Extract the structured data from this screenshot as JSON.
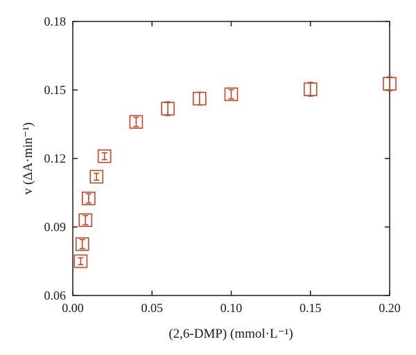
{
  "chart_data": {
    "type": "scatter",
    "xlabel": "(2,6-DMP) (mmol·L⁻¹)",
    "ylabel": "v (ΔA·min⁻¹)",
    "xlim": [
      0.0,
      0.2
    ],
    "ylim": [
      0.06,
      0.18
    ],
    "x_ticks": [
      "0.00",
      "0.05",
      "0.10",
      "0.15",
      "0.20"
    ],
    "y_ticks": [
      "0.06",
      "0.09",
      "0.12",
      "0.15",
      "0.18"
    ],
    "grid": false,
    "marker": "open-square-with-error-bars",
    "colors": {
      "marker": "#c8431f",
      "axis": "#1a1a1a"
    },
    "points": [
      {
        "x": 0.005,
        "y": 0.075,
        "err": 0.0015
      },
      {
        "x": 0.006,
        "y": 0.0825,
        "err": 0.002
      },
      {
        "x": 0.008,
        "y": 0.093,
        "err": 0.002
      },
      {
        "x": 0.01,
        "y": 0.1025,
        "err": 0.002
      },
      {
        "x": 0.015,
        "y": 0.112,
        "err": 0.0015
      },
      {
        "x": 0.02,
        "y": 0.121,
        "err": 0.0015
      },
      {
        "x": 0.04,
        "y": 0.136,
        "err": 0.002
      },
      {
        "x": 0.06,
        "y": 0.1418,
        "err": 0.003
      },
      {
        "x": 0.08,
        "y": 0.1462,
        "err": 0.0028
      },
      {
        "x": 0.1,
        "y": 0.1481,
        "err": 0.002
      },
      {
        "x": 0.15,
        "y": 0.1503,
        "err": 0.003
      },
      {
        "x": 0.2,
        "y": 0.1527,
        "err": 0.003
      }
    ]
  }
}
